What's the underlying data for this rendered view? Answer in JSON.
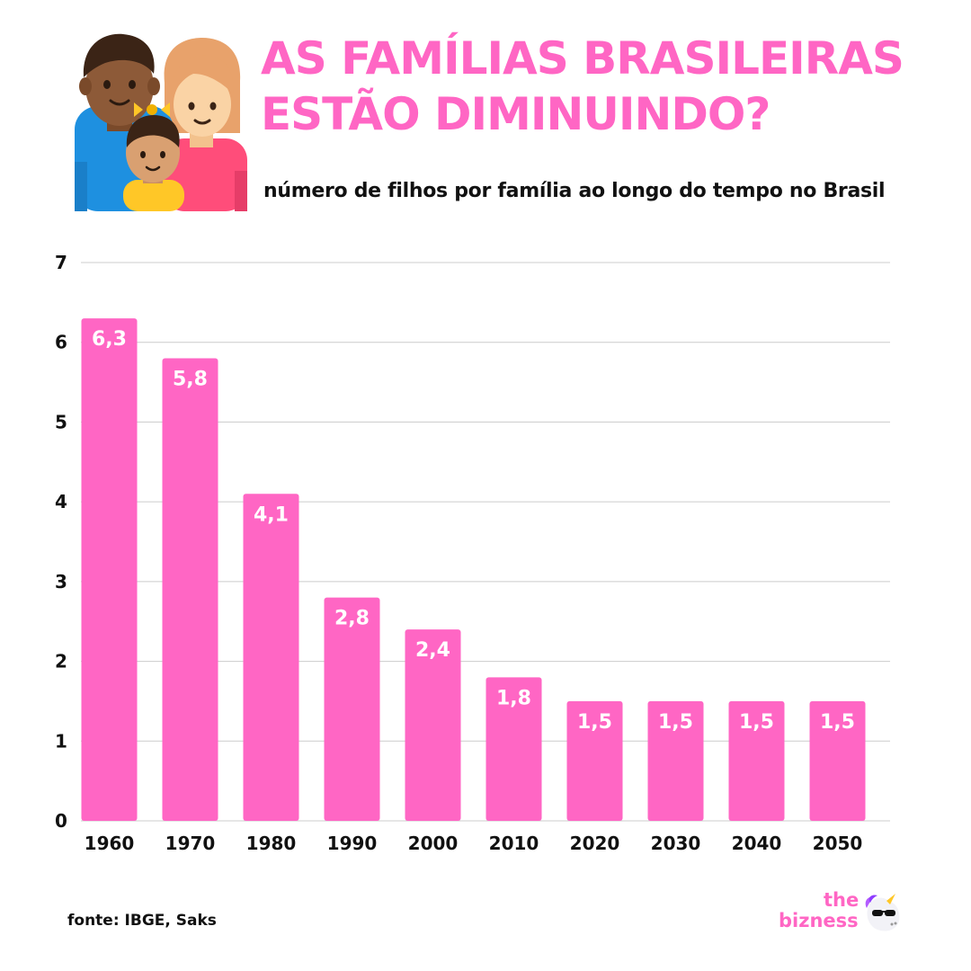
{
  "header": {
    "title_line1": "AS FAMÍLIAS BRASILEIRAS",
    "title_line2": "ESTÃO DIMINUINDO?",
    "subtitle": "número de filhos por família ao longo do tempo no Brasil",
    "icon": "family-icon"
  },
  "colors": {
    "accent": "#ff66c4",
    "text": "#111111",
    "grid": "#cccccc",
    "bar_label": "#ffffff"
  },
  "chart_data": {
    "type": "bar",
    "categories": [
      "1960",
      "1970",
      "1980",
      "1990",
      "2000",
      "2010",
      "2020",
      "2030",
      "2040",
      "2050"
    ],
    "values": [
      6.3,
      5.8,
      4.1,
      2.8,
      2.4,
      1.8,
      1.5,
      1.5,
      1.5,
      1.5
    ],
    "value_labels": [
      "6,3",
      "5,8",
      "4,1",
      "2,8",
      "2,4",
      "1,8",
      "1,5",
      "1,5",
      "1,5",
      "1,5"
    ],
    "title": "",
    "xlabel": "",
    "ylabel": "",
    "ylim": [
      0,
      7
    ],
    "yticks": [
      0,
      1,
      2,
      3,
      4,
      5,
      6,
      7
    ],
    "grid": true,
    "legend": "none"
  },
  "footer": {
    "source": "fonte: IBGE, Saks",
    "brand_line1": "the",
    "brand_line2": "bizness",
    "brand_icon": "unicorn-icon"
  }
}
